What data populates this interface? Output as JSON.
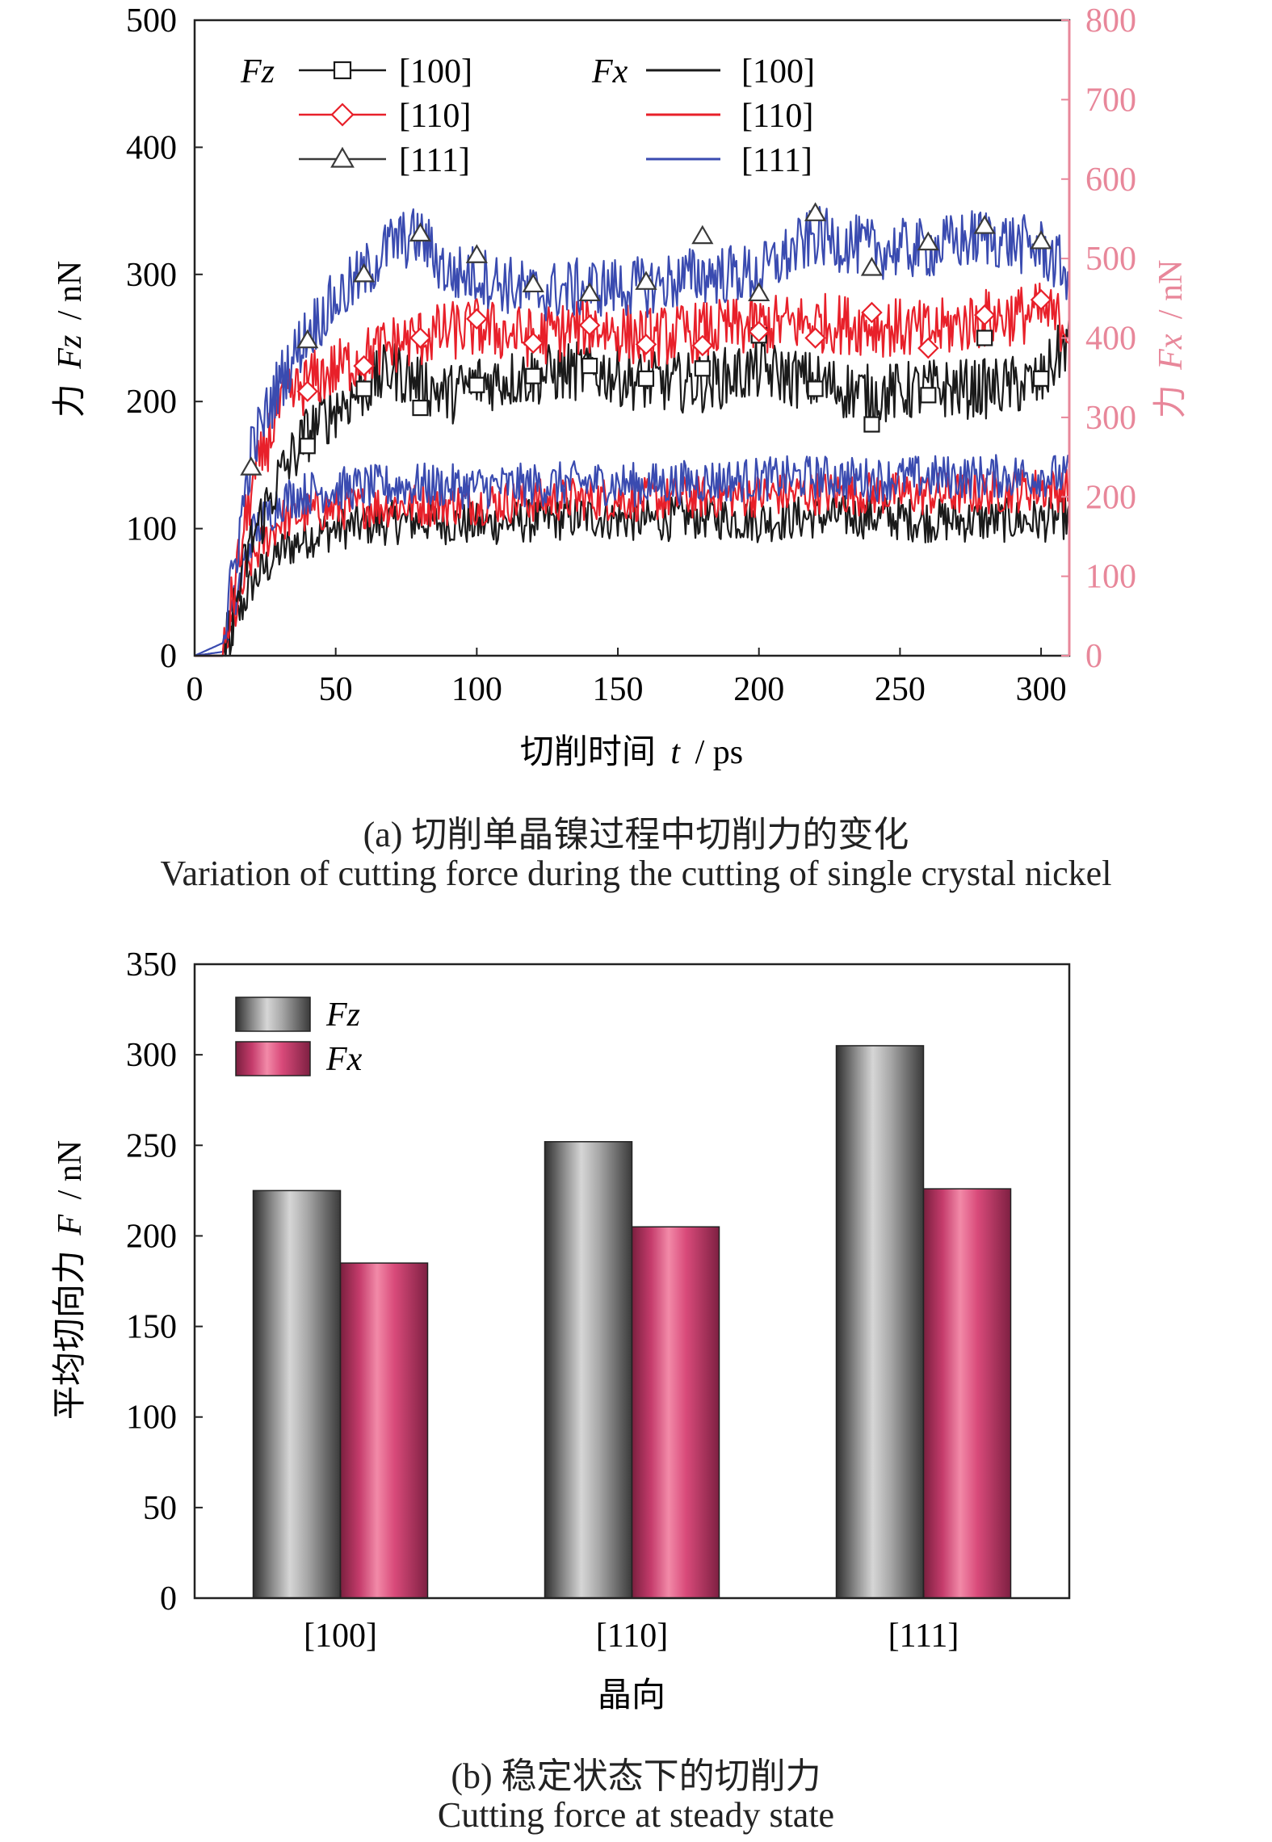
{
  "figure_a": {
    "caption_cn": "(a) 切削单晶镍过程中切削力的变化",
    "caption_en": "Variation of cutting force during the cutting of single crystal nickel"
  },
  "figure_b": {
    "caption_cn": "(b) 稳定状态下的切削力",
    "caption_en": "Cutting force at steady state"
  },
  "colors": {
    "fx_axis": "#e8879a",
    "s100": "#1a1a1a",
    "s110": "#e8202a",
    "s111": "#3a4bb0",
    "fz_bar": "#9a9a9a",
    "fx_bar": "#d94a7a"
  },
  "chart_data": [
    {
      "type": "line",
      "xlabel_text": "切削时间",
      "xlabel_var": "t",
      "xlabel_unit": "/ ps",
      "ylabel_text": "力",
      "ylabel_var": "Fz",
      "ylabel_unit": "/ nN",
      "y2label_text": "力",
      "y2label_var": "Fx",
      "y2label_unit": "/ nN",
      "xlim": [
        0,
        310
      ],
      "ylim": [
        0,
        500
      ],
      "y2lim": [
        0,
        800
      ],
      "xticks": [
        0,
        50,
        100,
        150,
        200,
        250,
        300
      ],
      "yticks": [
        0,
        100,
        200,
        300,
        400,
        500
      ],
      "y2ticks": [
        0,
        100,
        200,
        300,
        400,
        500,
        600,
        700,
        800
      ],
      "legend_placement": "top-left",
      "legend": {
        "fz_var": "Fz",
        "fx_var": "Fx",
        "fz_entries": [
          {
            "label": "[100]",
            "series": "s100",
            "marker": "square"
          },
          {
            "label": "[110]",
            "series": "s110",
            "marker": "diamond"
          },
          {
            "label": "[111]",
            "series": "s111",
            "marker": "triangle"
          }
        ],
        "fx_entries": [
          {
            "label": "[100]",
            "series": "s100"
          },
          {
            "label": "[110]",
            "series": "s110"
          },
          {
            "label": "[111]",
            "series": "s111"
          }
        ]
      },
      "series": [
        {
          "label": "[100]",
          "force": "Fz",
          "axis": "left",
          "color_key": "s100",
          "marker": "square",
          "x": [
            0,
            10,
            20,
            30,
            40,
            50,
            60,
            70,
            80,
            90,
            100,
            120,
            140,
            160,
            180,
            200,
            220,
            240,
            260,
            280,
            300,
            310
          ],
          "y": [
            0,
            0,
            90,
            140,
            175,
            195,
            210,
            225,
            215,
            205,
            215,
            220,
            225,
            215,
            215,
            225,
            215,
            205,
            210,
            210,
            215,
            250
          ],
          "marker_x": [
            40,
            60,
            80,
            100,
            120,
            140,
            160,
            180,
            200,
            220,
            240,
            260,
            280,
            300
          ],
          "marker_y": [
            165,
            210,
            195,
            213,
            220,
            228,
            218,
            226,
            252,
            210,
            182,
            205,
            250,
            218
          ]
        },
        {
          "label": "[110]",
          "force": "Fz",
          "axis": "left",
          "color_key": "s110",
          "marker": "diamond",
          "x": [
            0,
            10,
            20,
            30,
            40,
            50,
            60,
            70,
            80,
            90,
            100,
            120,
            140,
            160,
            180,
            200,
            220,
            240,
            260,
            280,
            300,
            310
          ],
          "y": [
            0,
            0,
            130,
            195,
            215,
            225,
            235,
            245,
            250,
            255,
            258,
            250,
            260,
            250,
            255,
            260,
            262,
            260,
            255,
            265,
            270,
            260
          ],
          "marker_x": [
            40,
            60,
            80,
            100,
            120,
            140,
            160,
            180,
            200,
            220,
            240,
            260,
            280,
            300
          ],
          "marker_y": [
            208,
            228,
            250,
            265,
            246,
            260,
            245,
            244,
            255,
            250,
            270,
            242,
            268,
            280
          ]
        },
        {
          "label": "[111]",
          "force": "Fz",
          "axis": "left",
          "color_key": "s111",
          "marker": "triangle",
          "x": [
            0,
            10,
            20,
            30,
            40,
            50,
            60,
            70,
            80,
            90,
            100,
            120,
            140,
            160,
            180,
            200,
            220,
            240,
            260,
            280,
            300,
            310
          ],
          "y": [
            0,
            10,
            160,
            215,
            255,
            280,
            300,
            325,
            330,
            300,
            300,
            285,
            290,
            290,
            300,
            300,
            330,
            320,
            320,
            330,
            320,
            300
          ],
          "marker_x": [
            20,
            40,
            60,
            80,
            100,
            120,
            140,
            160,
            180,
            200,
            220,
            240,
            260,
            280,
            300
          ],
          "marker_y": [
            148,
            248,
            300,
            332,
            315,
            292,
            285,
            294,
            330,
            285,
            348,
            305,
            325,
            338,
            326
          ]
        },
        {
          "label": "[100]",
          "force": "Fx",
          "axis": "right",
          "color_key": "s100",
          "x": [
            0,
            10,
            20,
            30,
            40,
            50,
            60,
            80,
            100,
            120,
            140,
            160,
            180,
            200,
            220,
            240,
            260,
            280,
            300,
            310
          ],
          "y": [
            0,
            0,
            90,
            130,
            150,
            160,
            165,
            170,
            165,
            170,
            175,
            170,
            175,
            170,
            175,
            175,
            170,
            170,
            170,
            175
          ]
        },
        {
          "label": "[110]",
          "force": "Fx",
          "axis": "right",
          "color_key": "s110",
          "x": [
            0,
            10,
            20,
            30,
            40,
            50,
            60,
            80,
            100,
            120,
            140,
            160,
            180,
            200,
            220,
            240,
            260,
            280,
            300,
            310
          ],
          "y": [
            0,
            0,
            120,
            170,
            180,
            185,
            188,
            190,
            192,
            195,
            198,
            196,
            200,
            202,
            205,
            204,
            203,
            205,
            210,
            208
          ]
        },
        {
          "label": "[111]",
          "force": "Fx",
          "axis": "right",
          "color_key": "s111",
          "x": [
            0,
            10,
            20,
            30,
            40,
            50,
            60,
            80,
            100,
            120,
            140,
            160,
            180,
            200,
            220,
            240,
            260,
            280,
            300,
            310
          ],
          "y": [
            0,
            5,
            150,
            195,
            205,
            210,
            212,
            215,
            212,
            215,
            218,
            215,
            220,
            222,
            225,
            222,
            225,
            225,
            228,
            225
          ]
        }
      ]
    },
    {
      "type": "bar",
      "xlabel": "晶向",
      "ylabel_text": "平均切向力",
      "ylabel_var": "F",
      "ylabel_unit": "/ nN",
      "categories": [
        "[100]",
        "[110]",
        "[111]"
      ],
      "ylim": [
        0,
        350
      ],
      "yticks": [
        0,
        50,
        100,
        150,
        200,
        250,
        300,
        350
      ],
      "legend_placement": "top-left",
      "series": [
        {
          "name": "Fz",
          "color_key": "fz_bar",
          "values": [
            225,
            252,
            305
          ]
        },
        {
          "name": "Fx",
          "color_key": "fx_bar",
          "values": [
            185,
            205,
            226
          ]
        }
      ]
    }
  ]
}
